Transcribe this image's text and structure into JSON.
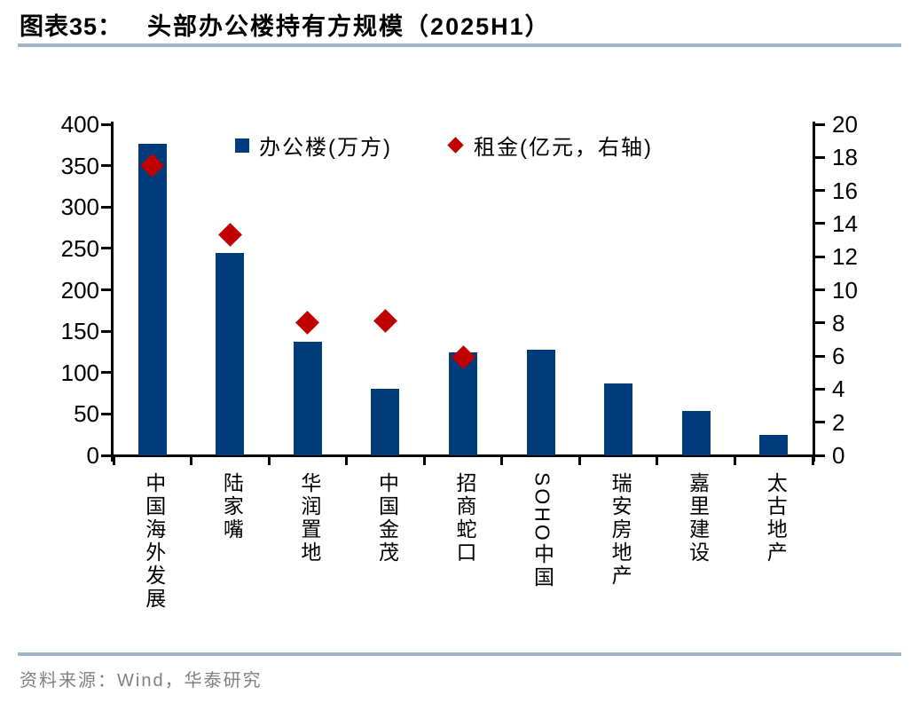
{
  "header": {
    "label": "图表35：",
    "title": "头部办公楼持有方规模（2025H1）"
  },
  "footer": {
    "source": "资料来源：Wind，华泰研究"
  },
  "theme": {
    "bar_color": "#003C7B",
    "diamond_color": "#C00000",
    "divider_color": "#A0B5CC",
    "source_text_color": "#808080",
    "axis_color": "#000000"
  },
  "chart_data": {
    "type": "bar",
    "title": "头部办公楼持有方规模（2025H1）",
    "categories": [
      "中国海外发展",
      "陆家嘴",
      "华润置地",
      "中国金茂",
      "招商蛇口",
      "SOHO中国",
      "瑞安房地产",
      "嘉里建设",
      "太古地产"
    ],
    "series": [
      {
        "name": "办公楼(万方)",
        "type": "bar",
        "axis": "left",
        "color": "#003C7B",
        "values": [
          376,
          244,
          137,
          80,
          124,
          128,
          87,
          54,
          25
        ]
      },
      {
        "name": "租金(亿元，右轴)",
        "type": "scatter",
        "marker": "diamond",
        "axis": "right",
        "color": "#C00000",
        "values": [
          17.5,
          13.3,
          8.0,
          8.1,
          5.9,
          null,
          null,
          null,
          null
        ]
      }
    ],
    "left_axis": {
      "min": 0,
      "max": 400,
      "step": 50,
      "ticks": [
        400,
        350,
        300,
        250,
        200,
        150,
        100,
        50,
        0
      ]
    },
    "right_axis": {
      "min": 0,
      "max": 20,
      "step": 2,
      "ticks": [
        20,
        18,
        16,
        14,
        12,
        10,
        8,
        6,
        4,
        2,
        0
      ]
    },
    "legend_position": "top",
    "grid": false
  }
}
